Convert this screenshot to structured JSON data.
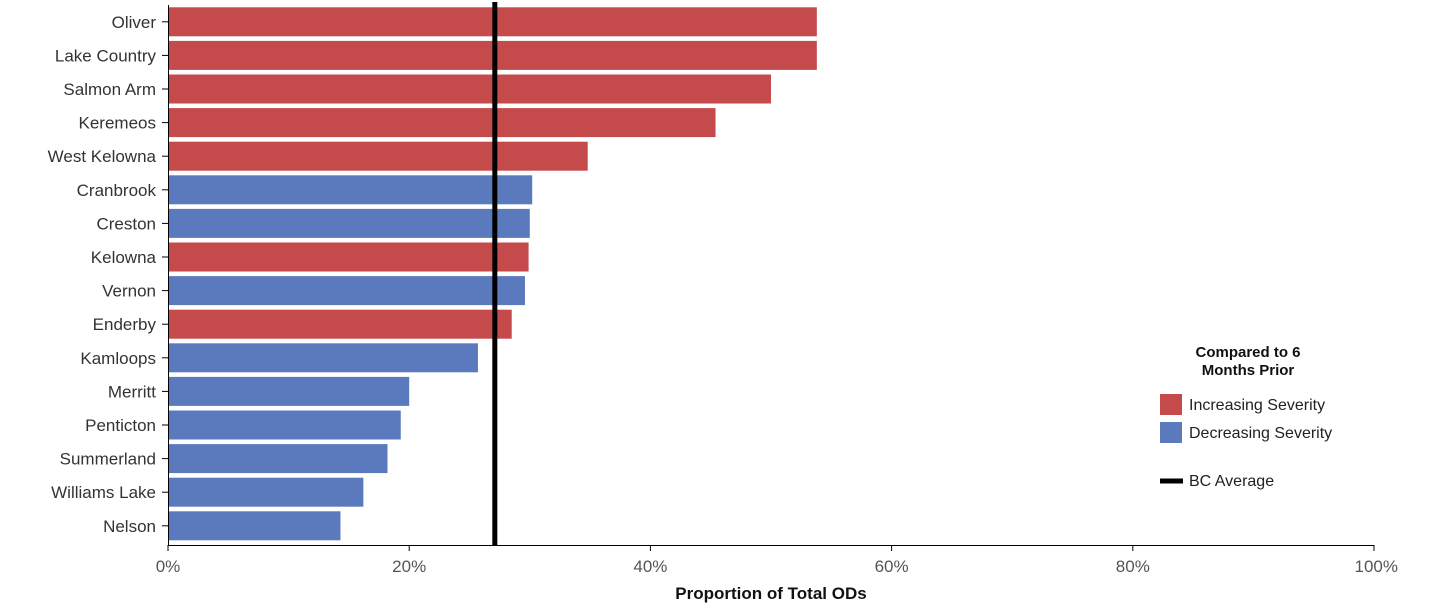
{
  "chart_data": {
    "type": "bar",
    "orientation": "horizontal",
    "categories": [
      "Oliver",
      "Lake Country",
      "Salmon Arm",
      "Keremeos",
      "West Kelowna",
      "Cranbrook",
      "Creston",
      "Kelowna",
      "Vernon",
      "Enderby",
      "Kamloops",
      "Merritt",
      "Penticton",
      "Summerland",
      "Williams Lake",
      "Nelson"
    ],
    "values": [
      53.8,
      53.8,
      50.0,
      45.4,
      34.8,
      30.2,
      30.0,
      29.9,
      29.6,
      28.5,
      25.7,
      20.0,
      19.3,
      18.2,
      16.2,
      14.3
    ],
    "severity": [
      "increasing",
      "increasing",
      "increasing",
      "increasing",
      "increasing",
      "decreasing",
      "decreasing",
      "increasing",
      "decreasing",
      "increasing",
      "decreasing",
      "decreasing",
      "decreasing",
      "decreasing",
      "decreasing",
      "decreasing"
    ],
    "bc_average": 27.1,
    "xlabel": "Proportion of Total ODs",
    "xlim": [
      0,
      100
    ],
    "xticks": [
      0,
      20,
      40,
      60,
      80,
      100
    ],
    "tick_labels": [
      "0%",
      "20%",
      "40%",
      "60%",
      "80%",
      "100%"
    ],
    "grid": false,
    "legend": {
      "placement": "right",
      "title_lines": [
        "Compared to 6",
        "Months Prior"
      ],
      "items": [
        {
          "key": "increasing",
          "label": "Increasing Severity",
          "color": "#c44a4c"
        },
        {
          "key": "decreasing",
          "label": "Decreasing Severity",
          "color": "#5b7abd"
        }
      ],
      "line_label": "BC Average",
      "line_color": "#000000"
    }
  }
}
